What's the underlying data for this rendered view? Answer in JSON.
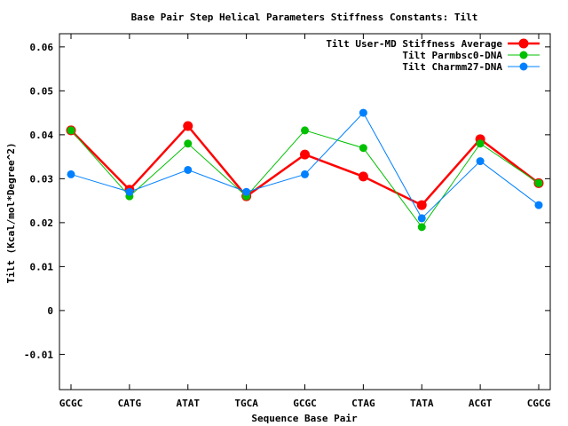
{
  "chart_data": {
    "type": "line",
    "title": "Base Pair Step Helical Parameters Stiffness Constants: Tilt",
    "xlabel": "Sequence Base Pair",
    "ylabel": "Tilt (Kcal/mol*Degree^2)",
    "categories": [
      "GCGC",
      "CATG",
      "ATAT",
      "TGCA",
      "GCGC",
      "CTAG",
      "TATA",
      "ACGT",
      "CGCG"
    ],
    "ylim": [
      -0.018,
      0.063
    ],
    "yticks": [
      -0.01,
      0,
      0.01,
      0.02,
      0.03,
      0.04,
      0.05,
      0.06
    ],
    "ytick_labels": [
      "-0.01",
      "0",
      "0.01",
      "0.02",
      "0.03",
      "0.04",
      "0.05",
      "0.06"
    ],
    "grid": false,
    "legend_position": "top-right",
    "series": [
      {
        "name": "Tilt User-MD Stiffness Average",
        "color": "#ff0000",
        "values": [
          0.041,
          0.0275,
          0.042,
          0.026,
          0.0355,
          0.0305,
          0.024,
          0.039,
          0.029
        ]
      },
      {
        "name": "Tilt Parmbsc0-DNA",
        "color": "#00c000",
        "values": [
          0.041,
          0.026,
          0.038,
          0.026,
          0.041,
          0.037,
          0.019,
          0.038,
          0.029
        ]
      },
      {
        "name": "Tilt Charmm27-DNA",
        "color": "#0080ff",
        "values": [
          0.031,
          0.027,
          0.032,
          0.027,
          0.031,
          0.045,
          0.021,
          0.034,
          0.024
        ]
      }
    ]
  }
}
